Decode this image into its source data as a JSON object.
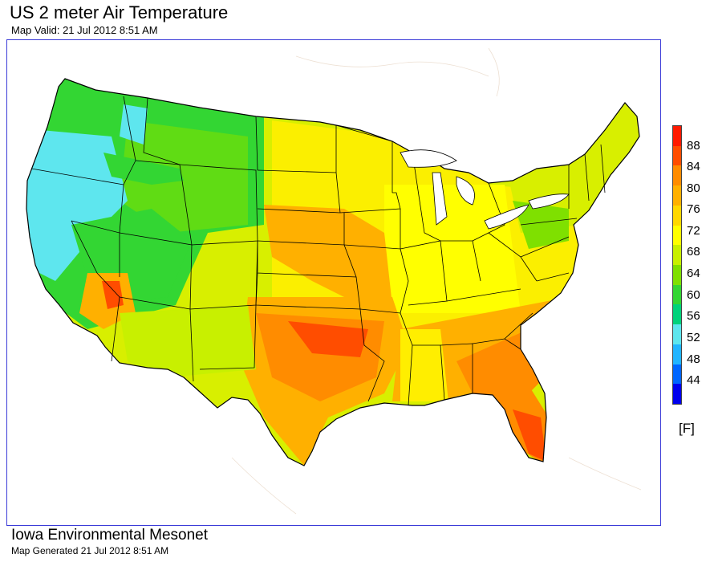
{
  "header": {
    "title": "US 2 meter Air Temperature",
    "subtitle": "Map Valid: 21 Jul 2012 8:51 AM"
  },
  "legend": {
    "labels": [
      "88",
      "84",
      "80",
      "76",
      "72",
      "68",
      "64",
      "60",
      "56",
      "52",
      "48",
      "44"
    ],
    "unit": "[F]",
    "colors": [
      "#ff1a00",
      "#ff4d00",
      "#ff8c00",
      "#ffb000",
      "#ffd800",
      "#ffff00",
      "#c8f000",
      "#7fe000",
      "#33d633",
      "#00d27a",
      "#5ee6ee",
      "#22b5ff",
      "#0066ff",
      "#0000ee"
    ]
  },
  "footer": {
    "organization": "Iowa Environmental Mesonet",
    "generated": "Map Generated 21 Jul 2012 8:51 AM"
  }
}
